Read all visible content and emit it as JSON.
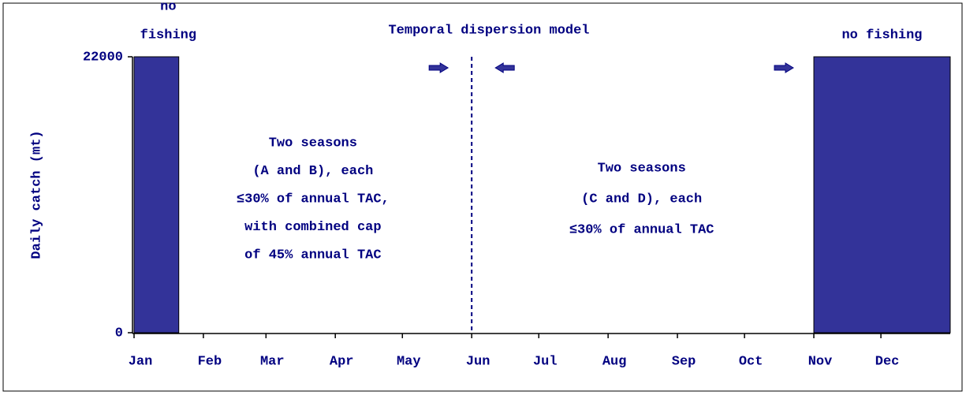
{
  "chart_data": {
    "type": "bar",
    "title": "Temporal dispersion model",
    "y_label": "Daily catch (mt)",
    "ylim": [
      0,
      22000
    ],
    "yticks": [
      0,
      22000
    ],
    "xlim": [
      0,
      365
    ],
    "xticks": [
      {
        "value": 0,
        "label": "Jan"
      },
      {
        "value": 31,
        "label": "Feb"
      },
      {
        "value": 59,
        "label": "Mar"
      },
      {
        "value": 90,
        "label": "Apr"
      },
      {
        "value": 120,
        "label": "May"
      },
      {
        "value": 151,
        "label": "Jun"
      },
      {
        "value": 181,
        "label": "Jul"
      },
      {
        "value": 212,
        "label": "Aug"
      },
      {
        "value": 243,
        "label": "Sep"
      },
      {
        "value": 273,
        "label": "Oct"
      },
      {
        "value": 304,
        "label": "Nov"
      },
      {
        "value": 334,
        "label": "Dec"
      }
    ],
    "color": "#333399",
    "bars": [
      {
        "label": [
          "no",
          "fishing"
        ],
        "x": [
          0,
          20
        ],
        "value": 22000
      },
      {
        "label": [
          "no fishing"
        ],
        "x": [
          304,
          365
        ],
        "value": 22000
      }
    ],
    "divider_x": 151,
    "annotations": [
      {
        "x": 80,
        "lines": [
          "Two seasons",
          "(A and B), each",
          "≤30% of annual TAC,",
          "with combined cap",
          "of 45% annual TAC"
        ]
      },
      {
        "x": 227,
        "lines": [
          "Two seasons",
          "(C and D), each",
          "≤30% of annual TAC"
        ]
      }
    ]
  }
}
